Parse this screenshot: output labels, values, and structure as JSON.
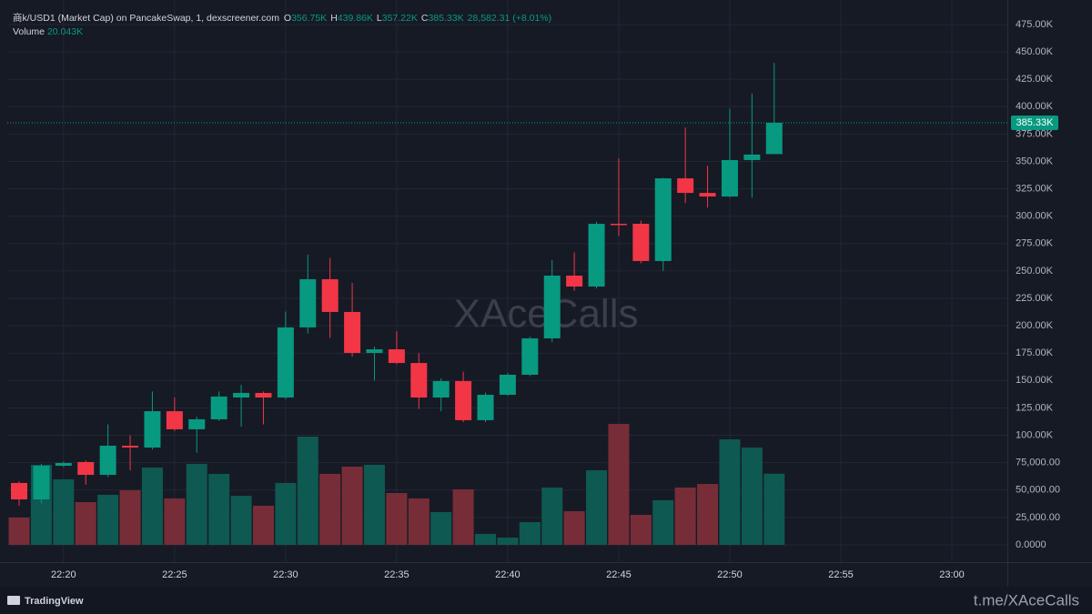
{
  "header": {
    "title": "商k/USD1 (Market Cap) on PancakeSwap, 1, dexscreener.com",
    "ohlc_letters": [
      "O",
      "H",
      "L",
      "C"
    ],
    "change": "28,582.31 (+8.01%)",
    "volume_label": "Volume"
  },
  "chart_data": {
    "type": "candlestick",
    "x": [
      "22:18",
      "22:19",
      "22:20",
      "22:21",
      "22:22",
      "22:23",
      "22:24",
      "22:25",
      "22:26",
      "22:27",
      "22:28",
      "22:29",
      "22:30",
      "22:31",
      "22:32",
      "22:33",
      "22:34",
      "22:35",
      "22:36",
      "22:37",
      "22:38",
      "22:39",
      "22:40",
      "22:41",
      "22:42",
      "22:43",
      "22:44",
      "22:45",
      "22:46",
      "22:47",
      "22:48",
      "22:49",
      "22:50",
      "22:51",
      "22:52"
    ],
    "open": [
      56500,
      41500,
      72200,
      75600,
      63900,
      90500,
      88800,
      122000,
      105500,
      114600,
      134500,
      138700,
      134500,
      198500,
      242500,
      212600,
      175200,
      178500,
      166000,
      134500,
      149500,
      113800,
      137000,
      155300,
      188500,
      245800,
      235800,
      293100,
      293100,
      259100,
      334600,
      321300,
      318000,
      351300,
      356750
    ],
    "high": [
      58100,
      74000,
      76000,
      77000,
      110000,
      100000,
      140000,
      134500,
      117000,
      140000,
      146000,
      140000,
      213000,
      265000,
      262000,
      239000,
      181000,
      195000,
      175000,
      152000,
      158000,
      139000,
      157000,
      190000,
      260000,
      267000,
      295000,
      353000,
      296000,
      335000,
      381000,
      346000,
      398000,
      412000,
      439860
    ],
    "low": [
      35700,
      38000,
      71000,
      55000,
      62000,
      68000,
      87000,
      104000,
      84000,
      113000,
      108000,
      110000,
      133000,
      193000,
      189000,
      172000,
      150000,
      165000,
      124000,
      122000,
      112000,
      112000,
      136000,
      154000,
      185000,
      232000,
      234000,
      282000,
      257000,
      250000,
      312000,
      308000,
      317000,
      317000,
      357220
    ],
    "close": [
      41500,
      72200,
      74700,
      63900,
      90500,
      88800,
      122000,
      105500,
      114600,
      135400,
      138700,
      134500,
      198500,
      242500,
      212600,
      175200,
      178500,
      166000,
      134500,
      149500,
      113800,
      137000,
      155300,
      188500,
      245800,
      235800,
      293100,
      292300,
      259100,
      334600,
      321300,
      318000,
      351300,
      356300,
      385330
    ],
    "last_labels": {
      "open": "356.75K",
      "high": "439.86K",
      "low": "357.22K",
      "close": "385.33K",
      "volume": "20.043K"
    },
    "up_color": "#089981",
    "down_color": "#f23645",
    "volume": {
      "values": [
        7680,
        22540,
        18440,
        12030,
        14090,
        15360,
        21770,
        13070,
        22790,
        19980,
        13810,
        11010,
        17420,
        30470,
        19980,
        22020,
        22540,
        14590,
        13070,
        9220,
        15630,
        3080,
        2050,
        6400,
        16130,
        9470,
        21000,
        34050,
        8450,
        12550,
        16130,
        17150,
        29700,
        27400,
        20043
      ],
      "ylim": [
        -4872,
        153376
      ],
      "up_color": "#0e5d53",
      "down_color": "#7c2e38"
    },
    "ylim": [
      -15800,
      497400
    ],
    "yticks": [
      {
        "value": 0,
        "label": "0.0000"
      },
      {
        "value": 25000,
        "label": "25,000.00"
      },
      {
        "value": 50000,
        "label": "50,000.00"
      },
      {
        "value": 75000,
        "label": "75,000.00"
      },
      {
        "value": 100000,
        "label": "100.00K"
      },
      {
        "value": 125000,
        "label": "125.00K"
      },
      {
        "value": 150000,
        "label": "150.00K"
      },
      {
        "value": 175000,
        "label": "175.00K"
      },
      {
        "value": 200000,
        "label": "200.00K"
      },
      {
        "value": 225000,
        "label": "225.00K"
      },
      {
        "value": 250000,
        "label": "250.00K"
      },
      {
        "value": 275000,
        "label": "275.00K"
      },
      {
        "value": 300000,
        "label": "300.00K"
      },
      {
        "value": 325000,
        "label": "325.00K"
      },
      {
        "value": 350000,
        "label": "350.00K"
      },
      {
        "value": 375000,
        "label": "375.00K"
      },
      {
        "value": 400000,
        "label": "400.00K"
      },
      {
        "value": 425000,
        "label": "425.00K"
      },
      {
        "value": 450000,
        "label": "450.00K"
      },
      {
        "value": 475000,
        "label": "475.00K"
      }
    ],
    "xlim": [
      "22:17:28",
      "23:02:30"
    ],
    "xticks": [
      "22:20",
      "22:25",
      "22:30",
      "22:35",
      "22:40",
      "22:45",
      "22:50",
      "22:55",
      "23:00"
    ],
    "grid": true,
    "watermark": "XAceCalls"
  },
  "footer": {
    "brand": "TradingView",
    "link": "t.me/XAceCalls"
  }
}
